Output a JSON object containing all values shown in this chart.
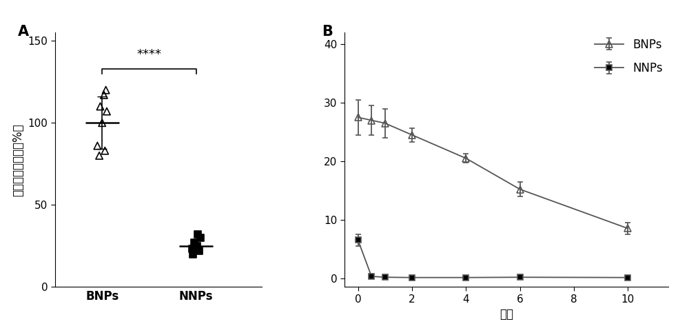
{
  "panel_A": {
    "title": "A",
    "ylabel": "荧光强度百分比（%）",
    "xtick_labels": [
      "BNPs",
      "NNPs"
    ],
    "ylim": [
      0,
      155
    ],
    "yticks": [
      0,
      50,
      100,
      150
    ],
    "BNPs_points_x": [
      0.97,
      1.03,
      0.95,
      1.0,
      1.05,
      0.98,
      1.02,
      1.04
    ],
    "BNPs_points_y": [
      80,
      83,
      86,
      100,
      107,
      110,
      117,
      120
    ],
    "BNPs_mean": 100,
    "BNPs_sd": 16,
    "NNPs_points_x": [
      1.97,
      2.03,
      1.96,
      2.01,
      1.98,
      2.05,
      2.02
    ],
    "NNPs_points_y": [
      20,
      22,
      23,
      25,
      27,
      30,
      32
    ],
    "NNPs_mean": 25,
    "NNPs_sd": 4,
    "sig_text": "****",
    "sig_y": 138,
    "sig_line_y": 133,
    "mean_halfwidth": 0.18
  },
  "panel_B": {
    "title": "B",
    "xlabel": "时间",
    "ylim": [
      -1.5,
      42
    ],
    "yticks": [
      0,
      10,
      20,
      30,
      40
    ],
    "xlim": [
      -0.5,
      11.5
    ],
    "xticks": [
      0,
      2,
      4,
      6,
      8,
      10
    ],
    "BNPs_x": [
      0,
      0.5,
      1,
      2,
      4,
      6,
      10
    ],
    "BNPs_y": [
      27.5,
      27.0,
      26.5,
      24.5,
      20.5,
      15.2,
      8.5
    ],
    "BNPs_err": [
      3.0,
      2.5,
      2.5,
      1.2,
      0.8,
      1.2,
      1.0
    ],
    "NNPs_x": [
      0,
      0.5,
      1,
      2,
      4,
      6,
      10
    ],
    "NNPs_y": [
      6.5,
      0.3,
      0.15,
      0.1,
      0.1,
      0.15,
      0.1
    ],
    "NNPs_err": [
      1.0,
      0.25,
      0.2,
      0.15,
      0.1,
      0.1,
      0.1
    ],
    "legend_BNPs": "BNPs",
    "legend_NNPs": "NNPs"
  },
  "background_color": "#ffffff",
  "line_color": "#555555",
  "fontsize_label": 12,
  "fontsize_tick": 11,
  "fontsize_panel": 15,
  "fontsize_sig": 13
}
